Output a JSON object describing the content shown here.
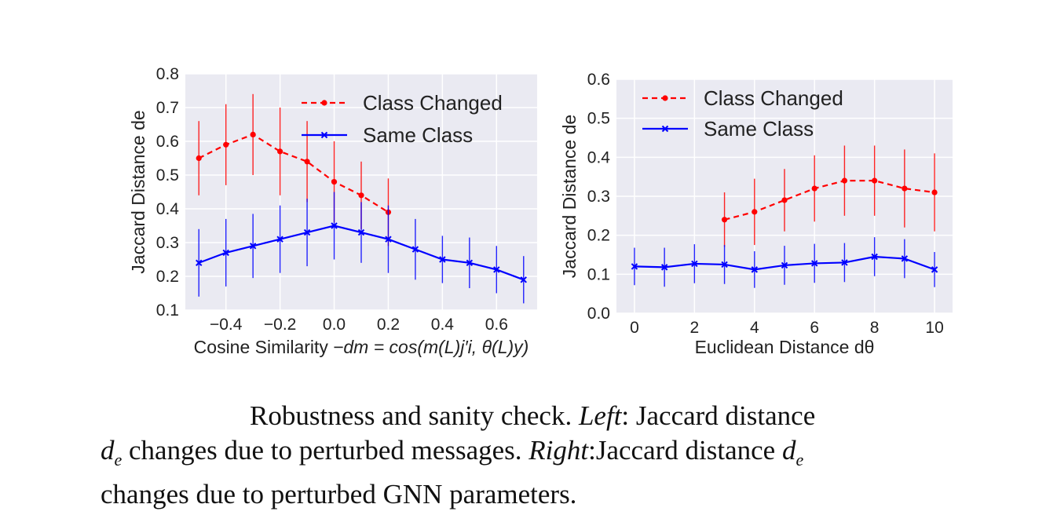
{
  "figure": {
    "caption": {
      "heading": "Robustness and sanity check.",
      "left_label": "Left",
      "left_text": ": Jaccard distance",
      "de_symbol": "d",
      "de_sub": "e",
      "left_text_2": "changes due to perturbed messages.",
      "right_label": "Right",
      "right_text": ":Jaccard distance",
      "right_text_2": "changes due to perturbed GNN parameters."
    }
  },
  "chart_data": [
    {
      "type": "line",
      "title": "",
      "xlabel": "Cosine Similarity",
      "xlabel_formula": "−dm = cos(m(L)j′i, θ(L)y)",
      "ylabel": "Jaccard Distance de",
      "xlim": [
        -0.55,
        0.75
      ],
      "ylim": [
        0.1,
        0.8
      ],
      "xticks": [
        -0.4,
        -0.2,
        0.0,
        0.2,
        0.4,
        0.6
      ],
      "xtick_labels": [
        "−0.4",
        "−0.2",
        "0.0",
        "0.2",
        "0.4",
        "0.6"
      ],
      "yticks": [
        0.1,
        0.2,
        0.3,
        0.4,
        0.5,
        0.6,
        0.7,
        0.8
      ],
      "ytick_labels": [
        "0.1",
        "0.2",
        "0.3",
        "0.4",
        "0.5",
        "0.6",
        "0.7",
        "0.8"
      ],
      "grid": true,
      "legend_position": "top-right",
      "series": [
        {
          "name": "Class Changed",
          "color": "#ff0000",
          "style": "dashed",
          "marker": "circle",
          "x": [
            -0.5,
            -0.4,
            -0.3,
            -0.2,
            -0.1,
            0.0,
            0.1,
            0.2
          ],
          "y": [
            0.55,
            0.59,
            0.62,
            0.57,
            0.54,
            0.48,
            0.44,
            0.39
          ],
          "err": [
            0.11,
            0.12,
            0.12,
            0.13,
            0.12,
            0.12,
            0.1,
            0.1
          ]
        },
        {
          "name": "Same Class",
          "color": "#0000ff",
          "style": "solid",
          "marker": "x",
          "x": [
            -0.5,
            -0.4,
            -0.3,
            -0.2,
            -0.1,
            0.0,
            0.1,
            0.2,
            0.3,
            0.4,
            0.5,
            0.6,
            0.7
          ],
          "y": [
            0.24,
            0.27,
            0.29,
            0.31,
            0.33,
            0.35,
            0.33,
            0.31,
            0.28,
            0.25,
            0.24,
            0.22,
            0.19
          ],
          "err": [
            0.1,
            0.1,
            0.095,
            0.1,
            0.1,
            0.1,
            0.09,
            0.1,
            0.09,
            0.07,
            0.075,
            0.07,
            0.07
          ]
        }
      ]
    },
    {
      "type": "line",
      "title": "",
      "xlabel": "Euclidean Distance dθ",
      "ylabel": "Jaccard Distance de",
      "xlim": [
        -0.6,
        10.6
      ],
      "ylim": [
        0.0,
        0.6
      ],
      "xticks": [
        0,
        2,
        4,
        6,
        8,
        10
      ],
      "xtick_labels": [
        "0",
        "2",
        "4",
        "6",
        "8",
        "10"
      ],
      "yticks": [
        0.0,
        0.1,
        0.2,
        0.3,
        0.4,
        0.5,
        0.6
      ],
      "ytick_labels": [
        "0.0",
        "0.1",
        "0.2",
        "0.3",
        "0.4",
        "0.5",
        "0.6"
      ],
      "grid": true,
      "legend_position": "top-left",
      "series": [
        {
          "name": "Class Changed",
          "color": "#ff0000",
          "style": "dashed",
          "marker": "circle",
          "x": [
            3,
            4,
            5,
            6,
            7,
            8,
            9,
            10
          ],
          "y": [
            0.24,
            0.26,
            0.29,
            0.32,
            0.34,
            0.34,
            0.32,
            0.31
          ],
          "err": [
            0.07,
            0.085,
            0.08,
            0.085,
            0.09,
            0.09,
            0.1,
            0.1
          ]
        },
        {
          "name": "Same Class",
          "color": "#0000ff",
          "style": "solid",
          "marker": "x",
          "x": [
            0,
            1,
            2,
            3,
            4,
            5,
            6,
            7,
            8,
            9,
            10
          ],
          "y": [
            0.12,
            0.118,
            0.127,
            0.125,
            0.112,
            0.123,
            0.128,
            0.13,
            0.145,
            0.14,
            0.112
          ],
          "err": [
            0.048,
            0.05,
            0.05,
            0.05,
            0.047,
            0.05,
            0.05,
            0.05,
            0.05,
            0.05,
            0.045
          ]
        }
      ]
    }
  ]
}
